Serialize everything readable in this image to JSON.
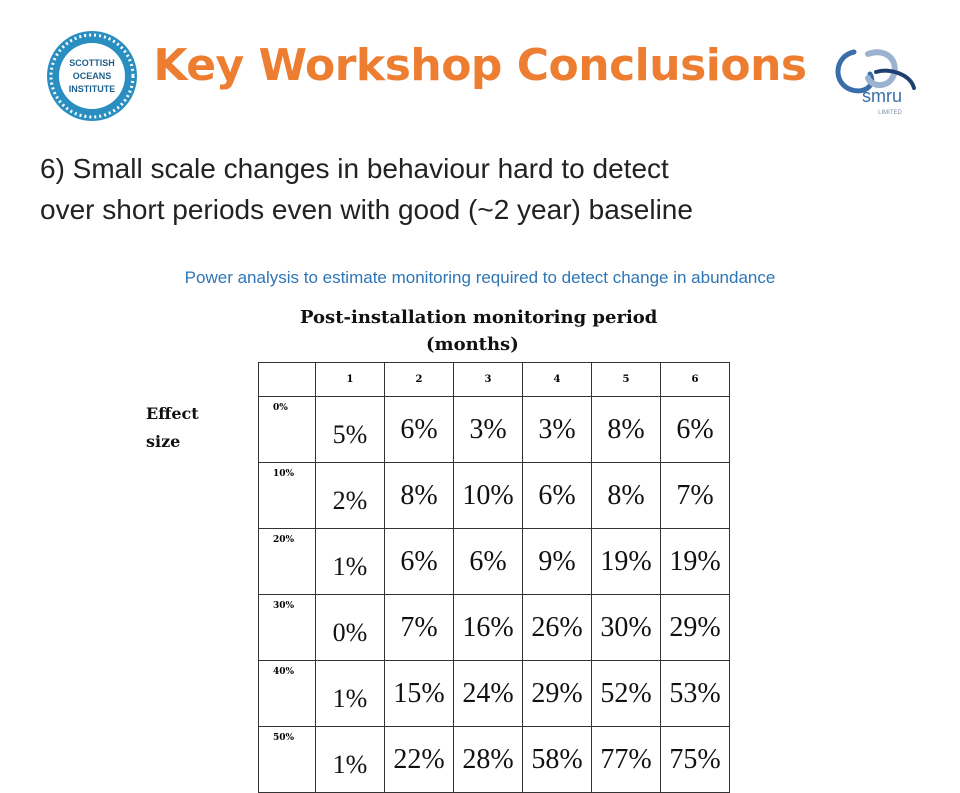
{
  "header": {
    "title": "Key Workshop Conclusions",
    "left_logo": {
      "icon": "scottish-oceans-institute-logo",
      "text_lines": [
        "SCOTTISH",
        "OCEANS",
        "INSTITUTE"
      ],
      "color": "#2a8fc0"
    },
    "right_logo": {
      "icon": "smru-limited-logo",
      "text": "smru",
      "subtext": "LIMITED",
      "color": "#3a6ea8"
    }
  },
  "subtitle": {
    "line1": "6) Small scale changes in behaviour hard to detect",
    "line2": "over short periods even with good (~2 year) baseline"
  },
  "caption": "Power analysis to estimate monitoring required to detect change in abundance",
  "table": {
    "heading_line1": "Post-installation monitoring period",
    "heading_line2": "(months)",
    "row_axis_line1": "Effect",
    "row_axis_line2": "size",
    "columns": [
      "1",
      "2",
      "3",
      "4",
      "5",
      "6"
    ],
    "rows": [
      {
        "label": "0%",
        "values": [
          "5%",
          "6%",
          "3%",
          "3%",
          "8%",
          "6%"
        ]
      },
      {
        "label": "10%",
        "values": [
          "2%",
          "8%",
          "10%",
          "6%",
          "8%",
          "7%"
        ]
      },
      {
        "label": "20%",
        "values": [
          "1%",
          "6%",
          "6%",
          "9%",
          "19%",
          "19%"
        ]
      },
      {
        "label": "30%",
        "values": [
          "0%",
          "7%",
          "16%",
          "26%",
          "30%",
          "29%"
        ]
      },
      {
        "label": "40%",
        "values": [
          "1%",
          "15%",
          "24%",
          "29%",
          "52%",
          "53%"
        ]
      },
      {
        "label": "50%",
        "values": [
          "1%",
          "22%",
          "28%",
          "58%",
          "77%",
          "75%"
        ]
      }
    ]
  },
  "colors": {
    "title": "#ed7d31",
    "caption": "#2e75b6",
    "text": "#222222"
  }
}
